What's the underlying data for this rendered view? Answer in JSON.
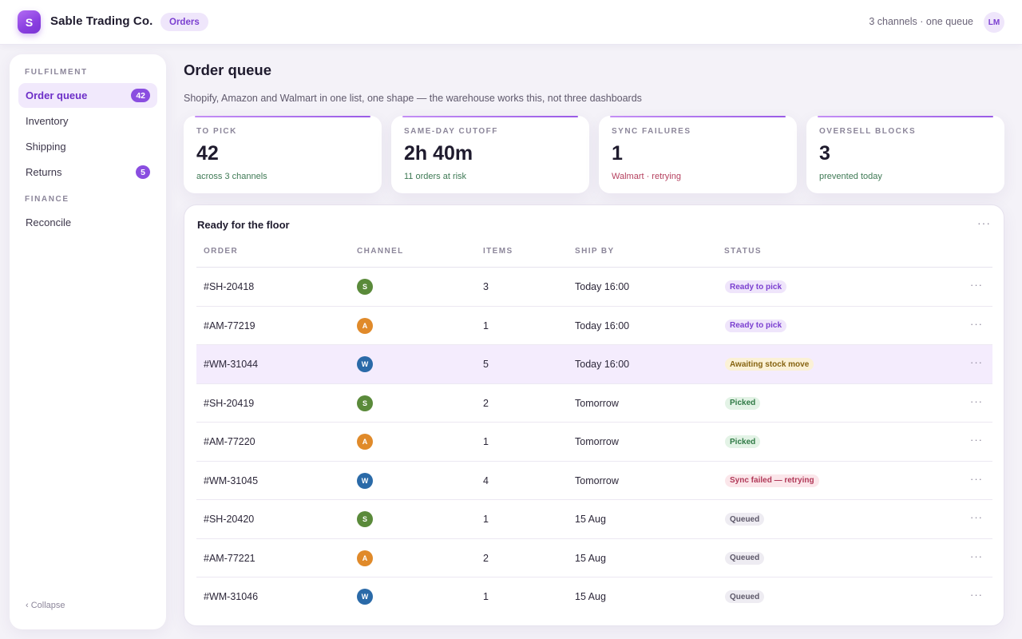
{
  "app": {
    "logo_letter": "S",
    "brand": "Sable Trading Co.",
    "crumb": "Orders",
    "meta": "3 channels · one queue",
    "avatar": "LM"
  },
  "sidebar": {
    "sections": [
      {
        "label": "FULFILMENT"
      },
      {
        "label": "FINANCE"
      }
    ],
    "items": [
      {
        "label": "Order queue",
        "badge": "42",
        "active": true
      },
      {
        "label": "Inventory"
      },
      {
        "label": "Shipping"
      },
      {
        "label": "Returns",
        "badge": "5"
      },
      {
        "label": "Reconcile"
      }
    ],
    "collapse": "‹ Collapse"
  },
  "main": {
    "title": "Order queue",
    "subtitle": "Shopify, Amazon and Walmart in one list, one shape — the warehouse works this, not three dashboards",
    "stats": [
      {
        "label": "TO PICK",
        "value": "42",
        "note": "across 3 channels",
        "tone": "green"
      },
      {
        "label": "SAME-DAY CUTOFF",
        "value": "2h 40m",
        "note": "11 orders at risk",
        "tone": "green"
      },
      {
        "label": "SYNC FAILURES",
        "value": "1",
        "note": "Walmart · retrying",
        "tone": "red"
      },
      {
        "label": "OVERSELL BLOCKS",
        "value": "3",
        "note": "prevented today",
        "tone": "green"
      }
    ]
  },
  "table": {
    "title": "Ready for the floor",
    "more": "···",
    "columns": [
      "ORDER",
      "CHANNEL",
      "ITEMS",
      "SHIP BY",
      "STATUS"
    ],
    "rows": [
      {
        "order": "#SH-20418",
        "channel": "S",
        "items": "3",
        "ship_by": "Today 16:00",
        "status": "Ready to pick"
      },
      {
        "order": "#AM-77219",
        "channel": "A",
        "items": "1",
        "ship_by": "Today 16:00",
        "status": "Ready to pick"
      },
      {
        "order": "#WM-31044",
        "channel": "W",
        "items": "5",
        "ship_by": "Today 16:00",
        "status": "Awaiting stock move"
      },
      {
        "order": "#SH-20419",
        "channel": "S",
        "items": "2",
        "ship_by": "Tomorrow",
        "status": "Picked"
      },
      {
        "order": "#AM-77220",
        "channel": "A",
        "items": "1",
        "ship_by": "Tomorrow",
        "status": "Picked"
      },
      {
        "order": "#WM-31045",
        "channel": "W",
        "items": "4",
        "ship_by": "Tomorrow",
        "status": "Sync failed — retrying"
      },
      {
        "order": "#SH-20420",
        "channel": "S",
        "items": "1",
        "ship_by": "15 Aug",
        "status": "Queued"
      },
      {
        "order": "#AM-77221",
        "channel": "A",
        "items": "2",
        "ship_by": "15 Aug",
        "status": "Queued"
      },
      {
        "order": "#WM-31046",
        "channel": "W",
        "items": "1",
        "ship_by": "15 Aug",
        "status": "Queued"
      }
    ]
  },
  "colors": {
    "accent": "#8a4ee0",
    "shopify": "#5a8a3a",
    "amazon": "#e08a2a",
    "walmart": "#2a6aa8"
  }
}
